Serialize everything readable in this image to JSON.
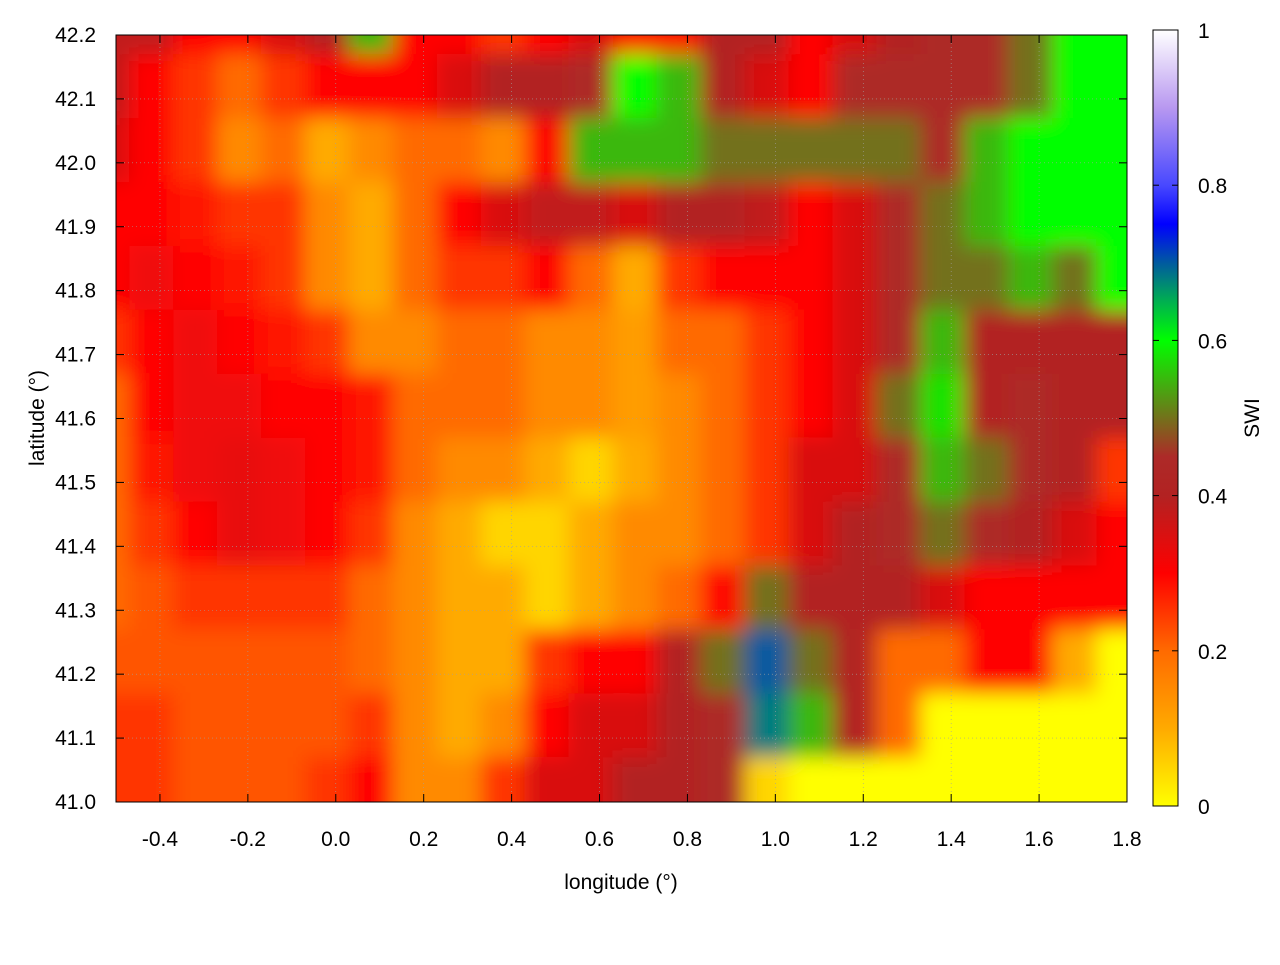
{
  "chart_data": {
    "type": "heatmap",
    "xlabel": "longitude (°)",
    "ylabel": "latitude (°)",
    "colorbar_label": "SWI",
    "xlim": [
      -0.5,
      1.8
    ],
    "ylim": [
      41.0,
      42.2
    ],
    "clim": [
      0,
      1
    ],
    "grid": true,
    "xticks": [
      "-0.4",
      "-0.2",
      "0.0",
      "0.2",
      "0.4",
      "0.6",
      "0.8",
      "1.0",
      "1.2",
      "1.4",
      "1.6",
      "1.8"
    ],
    "yticks": [
      "41.0",
      "41.1",
      "41.2",
      "41.3",
      "41.4",
      "41.5",
      "41.6",
      "41.7",
      "41.8",
      "41.9",
      "42.0",
      "42.1",
      "42.2"
    ],
    "cticks": [
      "0",
      "0.2",
      "0.4",
      "0.6",
      "0.8",
      "1"
    ],
    "palette": [
      {
        "v": 0.0,
        "c": "#ffff00"
      },
      {
        "v": 0.1,
        "c": "#ffaa00"
      },
      {
        "v": 0.2,
        "c": "#ff6a00"
      },
      {
        "v": 0.3,
        "c": "#ff0000"
      },
      {
        "v": 0.4,
        "c": "#b22222"
      },
      {
        "v": 0.45,
        "c": "#ad2a28"
      },
      {
        "v": 0.6,
        "c": "#00ff00"
      },
      {
        "v": 0.65,
        "c": "#00b050"
      },
      {
        "v": 0.7,
        "c": "#005aa0"
      },
      {
        "v": 0.75,
        "c": "#0000ff"
      },
      {
        "v": 0.8,
        "c": "#4848ff"
      },
      {
        "v": 0.9,
        "c": "#b898f0"
      },
      {
        "v": 1.0,
        "c": "#ffffff"
      }
    ],
    "lon": [
      -0.5,
      -0.4,
      -0.3,
      -0.2,
      -0.1,
      0.0,
      0.1,
      0.2,
      0.3,
      0.4,
      0.5,
      0.6,
      0.7,
      0.8,
      0.9,
      1.0,
      1.1,
      1.2,
      1.3,
      1.4,
      1.5,
      1.6,
      1.7,
      1.8
    ],
    "lat": [
      42.2,
      42.1,
      42.0,
      41.9,
      41.8,
      41.7,
      41.6,
      41.5,
      41.4,
      41.3,
      41.2,
      41.1,
      41.0
    ],
    "values": [
      [
        0.38,
        0.38,
        0.3,
        0.3,
        0.35,
        0.4,
        0.55,
        0.3,
        0.3,
        0.25,
        0.3,
        0.35,
        0.3,
        0.3,
        0.4,
        0.4,
        0.3,
        0.35,
        0.4,
        0.45,
        0.45,
        0.5,
        0.6,
        0.6
      ],
      [
        0.38,
        0.3,
        0.25,
        0.2,
        0.25,
        0.3,
        0.3,
        0.3,
        0.35,
        0.4,
        0.4,
        0.45,
        0.6,
        0.55,
        0.4,
        0.35,
        0.3,
        0.45,
        0.45,
        0.45,
        0.45,
        0.5,
        0.6,
        0.6
      ],
      [
        0.35,
        0.3,
        0.25,
        0.15,
        0.2,
        0.1,
        0.15,
        0.2,
        0.2,
        0.15,
        0.3,
        0.55,
        0.55,
        0.55,
        0.5,
        0.5,
        0.5,
        0.5,
        0.5,
        0.45,
        0.55,
        0.6,
        0.6,
        0.6
      ],
      [
        0.3,
        0.3,
        0.28,
        0.25,
        0.25,
        0.15,
        0.1,
        0.2,
        0.3,
        0.35,
        0.38,
        0.38,
        0.35,
        0.4,
        0.4,
        0.38,
        0.3,
        0.35,
        0.45,
        0.5,
        0.55,
        0.6,
        0.6,
        0.6
      ],
      [
        0.3,
        0.32,
        0.3,
        0.28,
        0.25,
        0.15,
        0.1,
        0.2,
        0.25,
        0.25,
        0.3,
        0.2,
        0.1,
        0.25,
        0.3,
        0.3,
        0.3,
        0.35,
        0.45,
        0.5,
        0.5,
        0.55,
        0.5,
        0.6
      ],
      [
        0.25,
        0.3,
        0.32,
        0.3,
        0.28,
        0.25,
        0.15,
        0.15,
        0.2,
        0.2,
        0.15,
        0.15,
        0.12,
        0.2,
        0.2,
        0.25,
        0.3,
        0.35,
        0.45,
        0.55,
        0.4,
        0.4,
        0.4,
        0.4
      ],
      [
        0.2,
        0.3,
        0.32,
        0.32,
        0.3,
        0.3,
        0.28,
        0.2,
        0.2,
        0.2,
        0.15,
        0.15,
        0.12,
        0.15,
        0.2,
        0.25,
        0.3,
        0.35,
        0.5,
        0.58,
        0.4,
        0.45,
        0.4,
        0.4
      ],
      [
        0.2,
        0.28,
        0.32,
        0.33,
        0.32,
        0.3,
        0.28,
        0.2,
        0.15,
        0.15,
        0.1,
        0.05,
        0.1,
        0.15,
        0.2,
        0.25,
        0.35,
        0.35,
        0.45,
        0.55,
        0.5,
        0.45,
        0.4,
        0.25
      ],
      [
        0.2,
        0.25,
        0.3,
        0.33,
        0.32,
        0.3,
        0.25,
        0.15,
        0.1,
        0.05,
        0.05,
        0.1,
        0.15,
        0.15,
        0.2,
        0.25,
        0.35,
        0.4,
        0.45,
        0.5,
        0.45,
        0.4,
        0.35,
        0.3
      ],
      [
        0.2,
        0.22,
        0.25,
        0.25,
        0.25,
        0.25,
        0.2,
        0.15,
        0.1,
        0.1,
        0.05,
        0.1,
        0.15,
        0.2,
        0.3,
        0.5,
        0.4,
        0.4,
        0.4,
        0.35,
        0.3,
        0.3,
        0.3,
        0.3
      ],
      [
        0.22,
        0.22,
        0.22,
        0.22,
        0.22,
        0.22,
        0.2,
        0.15,
        0.1,
        0.1,
        0.25,
        0.3,
        0.3,
        0.4,
        0.5,
        0.7,
        0.5,
        0.4,
        0.2,
        0.2,
        0.3,
        0.3,
        0.1,
        0.0
      ],
      [
        0.25,
        0.25,
        0.22,
        0.22,
        0.22,
        0.22,
        0.25,
        0.15,
        0.1,
        0.15,
        0.3,
        0.35,
        0.35,
        0.4,
        0.45,
        0.68,
        0.55,
        0.4,
        0.2,
        0.0,
        0.0,
        0.0,
        0.0,
        0.0
      ],
      [
        0.25,
        0.25,
        0.22,
        0.22,
        0.22,
        0.25,
        0.3,
        0.15,
        0.15,
        0.25,
        0.35,
        0.35,
        0.4,
        0.4,
        0.45,
        0.05,
        0.0,
        0.0,
        0.0,
        0.0,
        0.0,
        0.0,
        0.0,
        0.0
      ]
    ]
  }
}
